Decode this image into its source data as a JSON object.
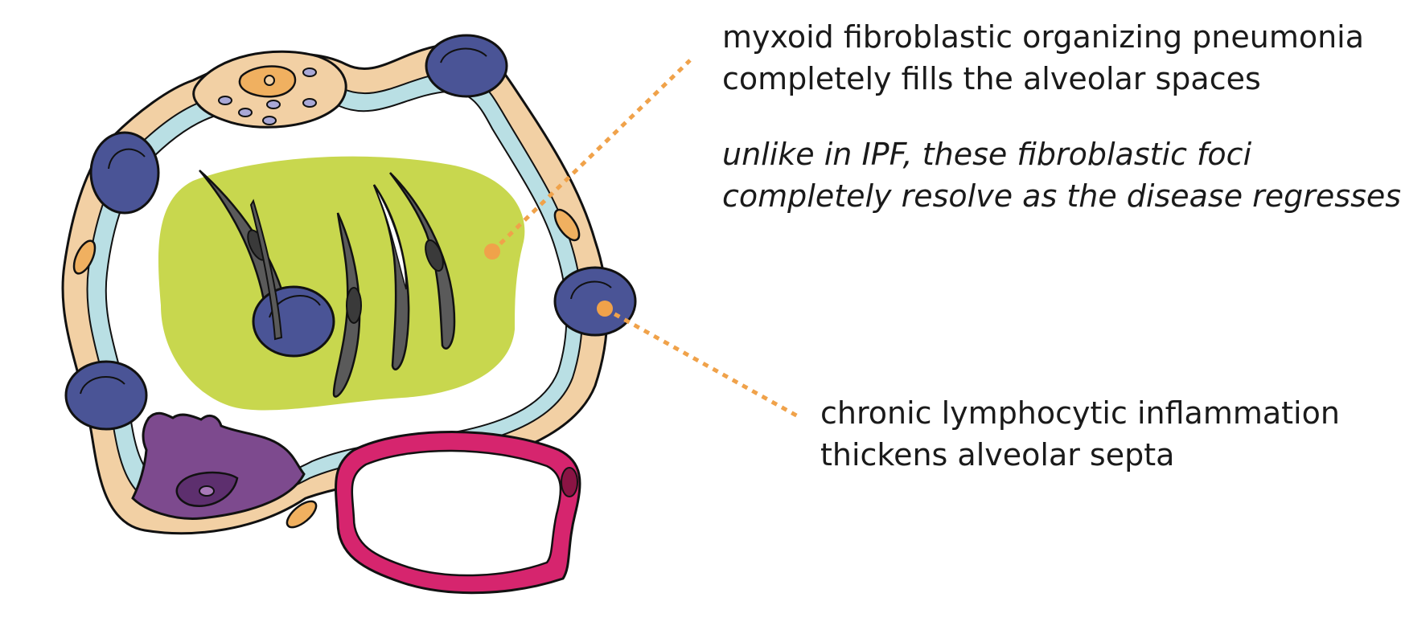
{
  "annotations": {
    "top": {
      "lines": [
        "myxoid fibroblastic organizing pneumonia",
        "completely fills the alveolar spaces"
      ]
    },
    "note": {
      "lines": [
        "unlike in IPF, these fibroblastic foci",
        "completely resolve as the disease regresses"
      ]
    },
    "bottom": {
      "lines": [
        "chronic lymphocytic inflammation",
        "thickens alveolar septa"
      ]
    }
  },
  "colors": {
    "septum": "#f2d0a4",
    "basement": "#b9dfe4",
    "nucleus": "#4a5496",
    "fibroblast_plug": "#c8d74e",
    "fibroblast": "#5a5a5a",
    "macrophage": "#7d4a8e",
    "capillary": "#d6256e",
    "leader": "#f0a24a",
    "outline": "#111111"
  }
}
